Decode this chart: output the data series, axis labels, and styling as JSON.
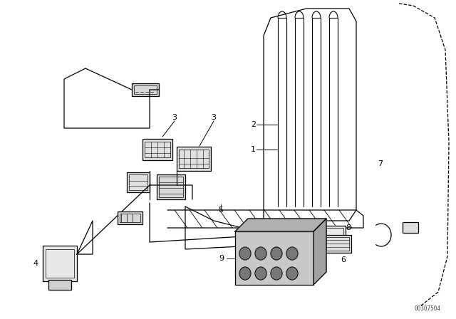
{
  "bg_color": "#ffffff",
  "line_color": "#000000",
  "fig_width": 6.4,
  "fig_height": 4.48,
  "dpi": 100,
  "watermark": "00307504"
}
